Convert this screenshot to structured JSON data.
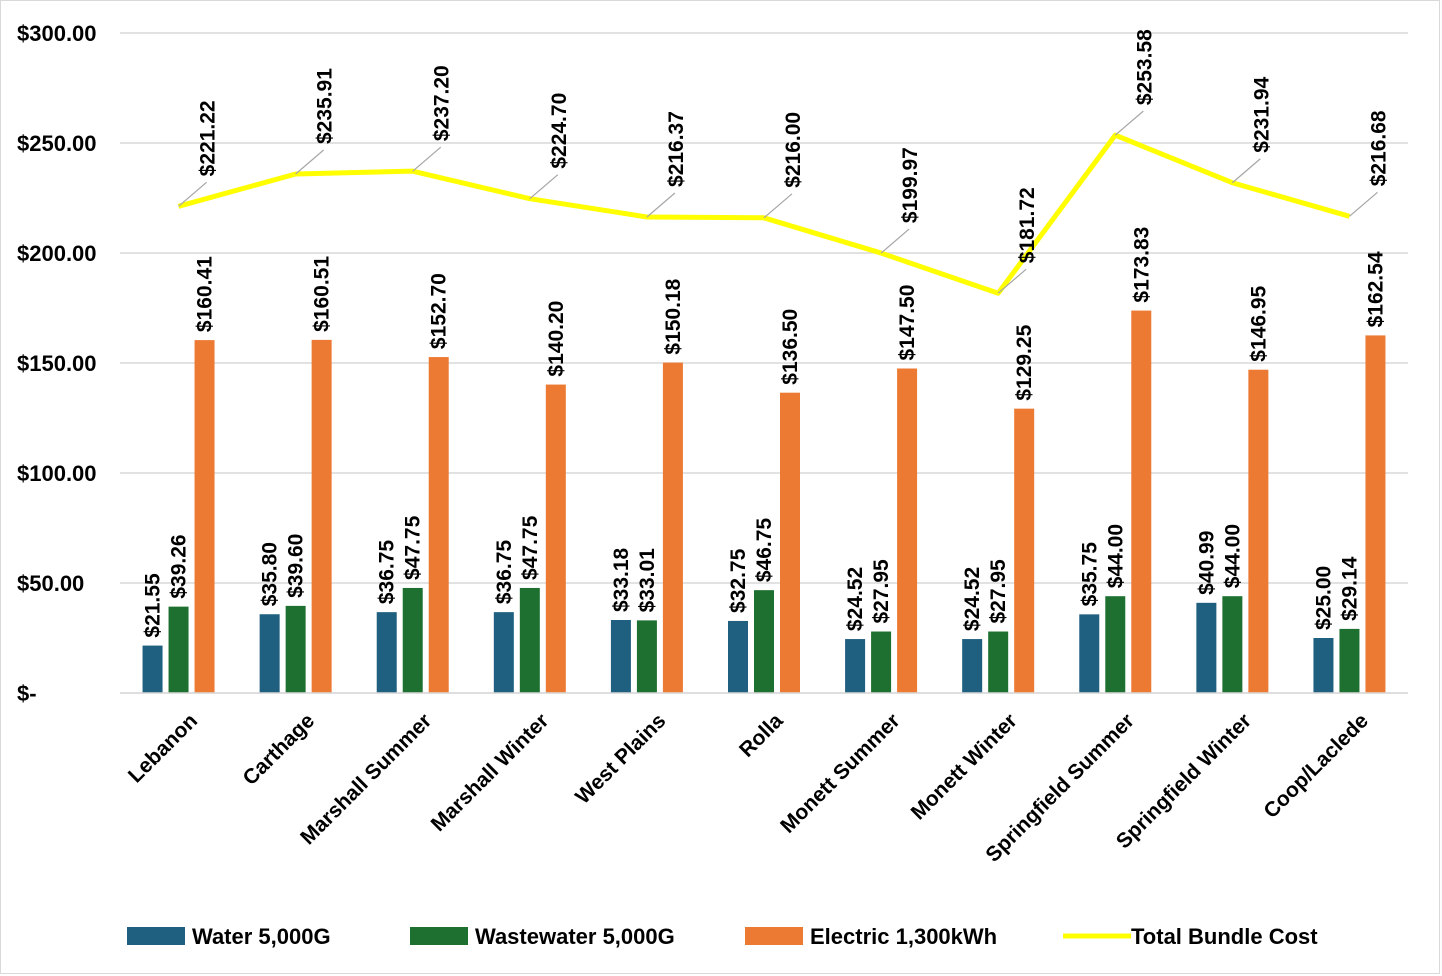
{
  "chart_data": {
    "type": "bar",
    "title": "",
    "xlabel": "",
    "ylabel": "",
    "ylim": [
      0,
      300
    ],
    "yticks": [
      {
        "value": 0,
        "label": "$-"
      },
      {
        "value": 50,
        "label": "$50.00"
      },
      {
        "value": 100,
        "label": "$100.00"
      },
      {
        "value": 150,
        "label": "$150.00"
      },
      {
        "value": 200,
        "label": "$200.00"
      },
      {
        "value": 250,
        "label": "$250.00"
      },
      {
        "value": 300,
        "label": "$300.00"
      }
    ],
    "grid": true,
    "legend_position": "bottom",
    "categories": [
      "Lebanon",
      "Carthage",
      "Marshall Summer",
      "Marshall Winter",
      "West Plains",
      "Rolla",
      "Monett Summer",
      "Monett Winter",
      "Springfield Summer",
      "Springfield Winter",
      "Coop/Laclede"
    ],
    "series": [
      {
        "name": "Water 5,000G",
        "type": "bar",
        "color": "#1f5f7f",
        "values": [
          21.55,
          35.8,
          36.75,
          36.75,
          33.18,
          32.75,
          24.52,
          24.52,
          35.75,
          40.99,
          25.0
        ],
        "labels": [
          "$21.55",
          "$35.80",
          "$36.75",
          "$36.75",
          "$33.18",
          "$32.75",
          "$24.52",
          "$24.52",
          "$35.75",
          "$40.99",
          "$25.00"
        ]
      },
      {
        "name": "Wastewater 5,000G",
        "type": "bar",
        "color": "#1e7030",
        "values": [
          39.26,
          39.6,
          47.75,
          47.75,
          33.01,
          46.75,
          27.95,
          27.95,
          44.0,
          44.0,
          29.14
        ],
        "labels": [
          "$39.26",
          "$39.60",
          "$47.75",
          "$47.75",
          "$33.01",
          "$46.75",
          "$27.95",
          "$27.95",
          "$44.00",
          "$44.00",
          "$29.14"
        ]
      },
      {
        "name": "Electric 1,300kWh",
        "type": "bar",
        "color": "#ed7a33",
        "values": [
          160.41,
          160.51,
          152.7,
          140.2,
          150.18,
          136.5,
          147.5,
          129.25,
          173.83,
          146.95,
          162.54
        ],
        "labels": [
          "$160.41",
          "$160.51",
          "$152.70",
          "$140.20",
          "$150.18",
          "$136.50",
          "$147.50",
          "$129.25",
          "$173.83",
          "$146.95",
          "$162.54"
        ]
      },
      {
        "name": "Total Bundle Cost",
        "type": "line",
        "color": "#ffff00",
        "values": [
          221.22,
          235.91,
          237.2,
          224.7,
          216.37,
          216.0,
          199.97,
          181.72,
          253.58,
          231.94,
          216.68
        ],
        "labels": [
          "$221.22",
          "$235.91",
          "$237.20",
          "$224.70",
          "$216.37",
          "$216.00",
          "$199.97",
          "$181.72",
          "$253.58",
          "$231.94",
          "$216.68"
        ]
      }
    ]
  }
}
